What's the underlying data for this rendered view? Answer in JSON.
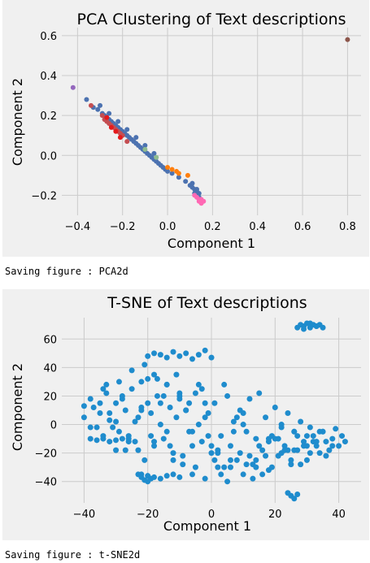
{
  "outputs": {
    "first": "Saving figure : PCA2d",
    "second": "Saving figure : t-SNE2d"
  },
  "chart_data": [
    {
      "type": "scatter",
      "title": "PCA Clustering of Text descriptions",
      "xlabel": "Component 1",
      "ylabel": "Component 2",
      "xlim": [
        -0.47,
        0.86
      ],
      "ylim": [
        -0.3,
        0.64
      ],
      "xticks": [
        -0.4,
        -0.2,
        0.0,
        0.2,
        0.4,
        0.6,
        0.8
      ],
      "xtick_labels": [
        "−0.4",
        "−0.2",
        "0.0",
        "0.2",
        "0.4",
        "0.6",
        "0.8"
      ],
      "yticks": [
        -0.2,
        0.0,
        0.2,
        0.4,
        0.6
      ],
      "ytick_labels": [
        "−0.2",
        "0.0",
        "0.2",
        "0.4",
        "0.6"
      ],
      "grid": true,
      "series": [
        {
          "color": "#4c72b0",
          "x": [
            -0.36,
            -0.33,
            -0.31,
            -0.29,
            -0.28,
            -0.27,
            -0.26,
            -0.25,
            -0.24,
            -0.23,
            -0.22,
            -0.21,
            -0.2,
            -0.19,
            -0.18,
            -0.17,
            -0.16,
            -0.15,
            -0.14,
            -0.13,
            -0.12,
            -0.11,
            -0.1,
            -0.09,
            -0.08,
            -0.07,
            -0.06,
            -0.05,
            -0.04,
            -0.03,
            -0.02,
            -0.01,
            0.0,
            0.02,
            0.05,
            0.08,
            0.1,
            0.11,
            0.12,
            0.12,
            0.13,
            0.13,
            0.14,
            0.14,
            0.15,
            -0.3,
            -0.26,
            -0.22,
            -0.18,
            -0.14,
            -0.1,
            -0.06,
            0.11,
            0.13,
            0.14
          ],
          "y": [
            0.28,
            0.24,
            0.23,
            0.21,
            0.2,
            0.19,
            0.18,
            0.17,
            0.16,
            0.15,
            0.14,
            0.13,
            0.12,
            0.11,
            0.1,
            0.09,
            0.08,
            0.07,
            0.06,
            0.05,
            0.04,
            0.03,
            0.02,
            0.01,
            0.0,
            -0.01,
            -0.02,
            -0.03,
            -0.04,
            -0.05,
            -0.06,
            -0.07,
            -0.08,
            -0.09,
            -0.11,
            -0.13,
            -0.15,
            -0.16,
            -0.17,
            -0.19,
            -0.18,
            -0.2,
            -0.21,
            -0.22,
            -0.23,
            0.25,
            0.21,
            0.17,
            0.13,
            0.09,
            0.05,
            0.01,
            -0.14,
            -0.17,
            -0.19
          ]
        },
        {
          "color": "#c44e52",
          "x": [
            -0.34,
            -0.29,
            -0.28,
            -0.27,
            -0.26,
            -0.25,
            -0.24,
            -0.23,
            -0.22,
            -0.21,
            -0.2,
            -0.18
          ],
          "y": [
            0.25,
            0.2,
            0.18,
            0.17,
            0.16,
            0.15,
            0.14,
            0.13,
            0.12,
            0.11,
            0.1,
            0.07
          ]
        },
        {
          "color": "#e41a1c",
          "x": [
            -0.27,
            -0.25,
            -0.23,
            -0.21
          ],
          "y": [
            0.19,
            0.14,
            0.12,
            0.09
          ]
        },
        {
          "color": "#ff7f0e",
          "x": [
            0.0,
            0.02,
            0.04,
            0.05,
            0.09
          ],
          "y": [
            -0.06,
            -0.07,
            -0.08,
            -0.09,
            -0.1
          ]
        },
        {
          "color": "#ff69b4",
          "x": [
            0.12,
            0.13,
            0.14,
            0.14,
            0.15,
            0.15,
            0.16
          ],
          "y": [
            -0.2,
            -0.21,
            -0.22,
            -0.23,
            -0.22,
            -0.24,
            -0.23
          ]
        },
        {
          "color": "#8c564b",
          "x": [
            0.8
          ],
          "y": [
            0.58
          ]
        },
        {
          "color": "#9467bd",
          "x": [
            -0.42
          ],
          "y": [
            0.34
          ]
        },
        {
          "color": "#8fbc8f",
          "x": [
            -0.1,
            -0.05
          ],
          "y": [
            0.03,
            -0.01
          ]
        }
      ]
    },
    {
      "type": "scatter",
      "title": "T-SNE of Text descriptions",
      "xlabel": "Component 1",
      "ylabel": "Component 2",
      "xlim": [
        -47,
        47
      ],
      "ylim": [
        -55,
        75
      ],
      "xticks": [
        -40,
        -20,
        0,
        20,
        40
      ],
      "xtick_labels": [
        "−40",
        "−20",
        "0",
        "20",
        "40"
      ],
      "yticks": [
        -40,
        -20,
        0,
        20,
        40,
        60
      ],
      "ytick_labels": [
        "−40",
        "−20",
        "0",
        "20",
        "40",
        "60"
      ],
      "grid": true,
      "series": [
        {
          "color": "#1f8ccd",
          "x": [
            -40,
            -38,
            -37,
            -35,
            -34,
            -33,
            -32,
            -30,
            -29,
            -28,
            -27,
            -26,
            -25,
            -24,
            -23,
            -22,
            -21,
            -20,
            -19,
            -18,
            -17,
            -16,
            -15,
            -14,
            -13,
            -12,
            -11,
            -10,
            -9,
            -8,
            -7,
            -6,
            -5,
            -4,
            -3,
            -2,
            -1,
            0,
            1,
            2,
            3,
            4,
            5,
            6,
            7,
            8,
            9,
            10,
            11,
            12,
            13,
            14,
            15,
            16,
            17,
            18,
            19,
            20,
            21,
            22,
            23,
            24,
            25,
            26,
            27,
            28,
            29,
            30,
            31,
            32,
            33,
            34,
            35,
            36,
            37,
            38,
            39,
            40,
            41,
            42,
            -35,
            -33,
            -31,
            -29,
            -27,
            -25,
            -23,
            -21,
            -19,
            -17,
            -15,
            -13,
            -11,
            -9,
            -7,
            -5,
            -3,
            -1,
            1,
            3,
            5,
            7,
            9,
            11,
            13,
            15,
            17,
            19,
            21,
            23,
            25,
            27,
            29,
            31,
            33,
            35,
            -38,
            -34,
            -30,
            -26,
            -22,
            -18,
            -14,
            -10,
            -6,
            -2,
            2,
            6,
            10,
            14,
            18,
            22,
            26,
            30,
            34,
            38,
            -36,
            -32,
            -28,
            -24,
            -20,
            -16,
            -12,
            -8,
            -4,
            0,
            4,
            8,
            12,
            16,
            20,
            24,
            28,
            32,
            36,
            -30,
            -26,
            -22,
            -18,
            -14,
            -10,
            -6,
            -2,
            2,
            6,
            10,
            14,
            18,
            22,
            26,
            30,
            -20,
            -18,
            -16,
            -14,
            -12,
            -10,
            -8,
            -6,
            -4,
            -2,
            0,
            -22,
            -20,
            -18,
            -16,
            -14,
            -12,
            -10,
            27,
            28,
            29,
            30,
            31,
            32,
            33,
            34,
            35,
            29,
            31,
            33,
            -23,
            -22,
            -21,
            -20,
            -19,
            24,
            25,
            26,
            27,
            -40,
            -38,
            -36,
            -34,
            -32,
            -30,
            -28
          ],
          "y": [
            5,
            -2,
            12,
            8,
            -8,
            22,
            3,
            15,
            -5,
            18,
            10,
            -12,
            25,
            2,
            -18,
            30,
            -25,
            15,
            8,
            -15,
            20,
            0,
            -10,
            28,
            12,
            -20,
            5,
            18,
            -28,
            10,
            -5,
            -35,
            22,
            0,
            -12,
            -38,
            8,
            -20,
            15,
            -30,
            -8,
            28,
            -40,
            -15,
            2,
            -25,
            10,
            -35,
            -5,
            18,
            -28,
            -10,
            22,
            -18,
            5,
            -32,
            -8,
            12,
            -22,
            0,
            -15,
            8,
            -28,
            -5,
            -18,
            2,
            -12,
            -25,
            -2,
            -8,
            -15,
            -20,
            -5,
            -12,
            -18,
            -10,
            -3,
            -15,
            -8,
            -12,
            15,
            28,
            -2,
            30,
            -18,
            38,
            5,
            42,
            -8,
            32,
            20,
            -15,
            35,
            -22,
            15,
            -30,
            25,
            -8,
            -25,
            -35,
            20,
            -5,
            -20,
            -28,
            -38,
            -15,
            -22,
            -30,
            -10,
            -18,
            -25,
            -8,
            -15,
            -20,
            -12,
            -5,
            18,
            25,
            2,
            -10,
            12,
            35,
            -5,
            22,
            -15,
            5,
            -20,
            -30,
            8,
            -25,
            -12,
            -2,
            -18,
            -8,
            -5,
            -15,
            -2,
            8,
            20,
            -12,
            32,
            15,
            -25,
            10,
            28,
            -15,
            -30,
            5,
            -22,
            -35,
            -10,
            -18,
            -28,
            -12,
            -22,
            -18,
            -8,
            10,
            -12,
            28,
            20,
            -5,
            15,
            -18,
            -25,
            0,
            -30,
            -10,
            -20,
            -5,
            -15,
            48,
            50,
            49,
            47,
            51,
            48,
            50,
            46,
            49,
            52,
            47,
            -35,
            -36,
            -37,
            -38,
            -36,
            -35,
            -37,
            68,
            70,
            69,
            71,
            68,
            70,
            69,
            70,
            68,
            67,
            71,
            69,
            -35,
            -37,
            -39,
            -40,
            -38,
            -48,
            -50,
            -52,
            -49,
            13,
            -10,
            -11,
            -10,
            -12,
            -11,
            -10
          ]
        }
      ]
    }
  ]
}
